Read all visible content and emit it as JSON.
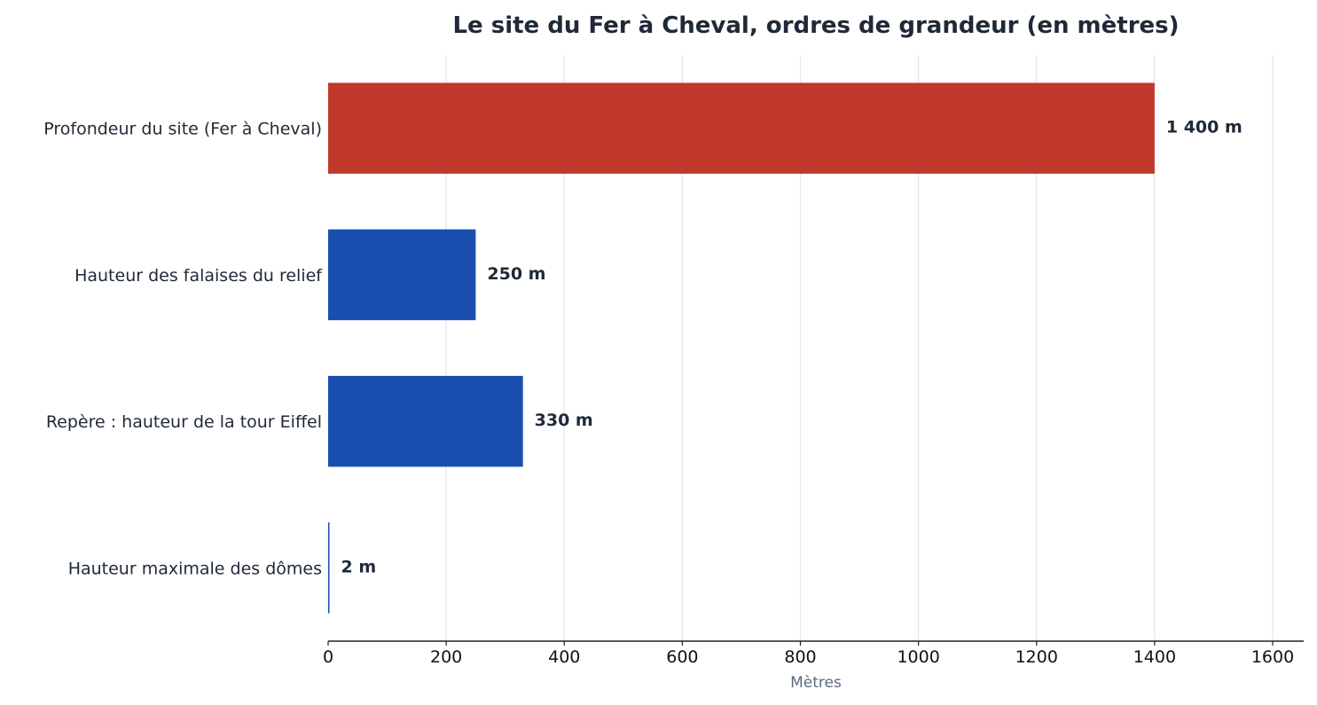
{
  "chart_data": {
    "type": "bar",
    "orientation": "horizontal",
    "title": "Le site du Fer à Cheval, ordres de grandeur (en mètres)",
    "xlabel": "Mètres",
    "ylabel": "",
    "xlim": [
      0,
      1650
    ],
    "xticks": [
      0,
      200,
      400,
      600,
      800,
      1000,
      1200,
      1400,
      1600
    ],
    "grid": "vertical",
    "categories": [
      "Profondeur du site (Fer à Cheval)",
      "Hauteur des falaises du relief",
      "Repère : hauteur de la tour Eiffel",
      "Hauteur maximale des dômes"
    ],
    "values": [
      1400,
      250,
      330,
      2
    ],
    "value_labels": [
      "1 400 m",
      "250 m",
      "330 m",
      "2 m"
    ],
    "bar_colors": [
      "#c0392b",
      "#1a4fb0",
      "#1a4fb0",
      "#1a4fb0"
    ],
    "grid_color": "#e5e7eb",
    "axis_color": "#222222"
  }
}
